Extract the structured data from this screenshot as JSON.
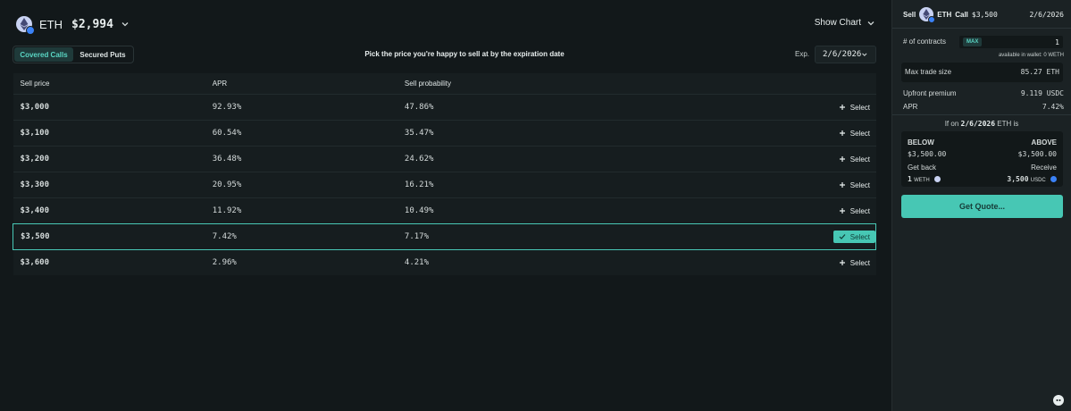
{
  "header": {
    "asset": "ETH",
    "price": "$2,994",
    "show_chart": "Show Chart"
  },
  "tabs": [
    {
      "label": "Covered Calls",
      "active": true
    },
    {
      "label": "Secured Puts",
      "active": false
    }
  ],
  "instruction": "Pick the price you're happy to sell at by the expiration date",
  "expiry": {
    "label": "Exp.",
    "value": "2/6/2026"
  },
  "table": {
    "columns": [
      "Sell price",
      "APR",
      "Sell probability",
      ""
    ],
    "rows": [
      {
        "price": "$3,000",
        "apr": "92.93%",
        "prob": "47.86%",
        "action": "Select",
        "selected": false
      },
      {
        "price": "$3,100",
        "apr": "60.54%",
        "prob": "35.47%",
        "action": "Select",
        "selected": false
      },
      {
        "price": "$3,200",
        "apr": "36.48%",
        "prob": "24.62%",
        "action": "Select",
        "selected": false
      },
      {
        "price": "$3,300",
        "apr": "20.95%",
        "prob": "16.21%",
        "action": "Select",
        "selected": false
      },
      {
        "price": "$3,400",
        "apr": "11.92%",
        "prob": "10.49%",
        "action": "Select",
        "selected": false
      },
      {
        "price": "$3,500",
        "apr": "7.42%",
        "prob": "7.17%",
        "action": "Select",
        "selected": true
      },
      {
        "price": "$3,600",
        "apr": "2.96%",
        "prob": "4.21%",
        "action": "Select",
        "selected": false
      }
    ]
  },
  "panel": {
    "side": "Sell",
    "asset": "ETH",
    "type": "Call",
    "strike": "$3,500",
    "date": "2/6/2026",
    "contracts_label": "# of contracts",
    "max_label": "MAX",
    "contracts_value": "1",
    "wallet_note": "available in wallet: 0 WETH",
    "max_trade_label": "Max trade size",
    "max_trade_value": "85.27 ETH",
    "premium_label": "Upfront premium",
    "premium_value": "9.119 USDC",
    "apr_label": "APR",
    "apr_value": "7.42%",
    "scenario_prefix": "If on",
    "scenario_date": "2/6/2026",
    "scenario_suffix": "ETH is",
    "below_label": "BELOW",
    "above_label": "ABOVE",
    "below_value": "$3,500.00",
    "above_value": "$3,500.00",
    "get_back_label": "Get back",
    "receive_label": "Receive",
    "get_back_amount": "1",
    "get_back_token": "WETH",
    "receive_amount": "3,500",
    "receive_token": "USDC",
    "quote_button": "Get Quote..."
  },
  "colors": {
    "accent": "#47c7b4",
    "background": "#12181a",
    "panel": "#1b2224"
  }
}
